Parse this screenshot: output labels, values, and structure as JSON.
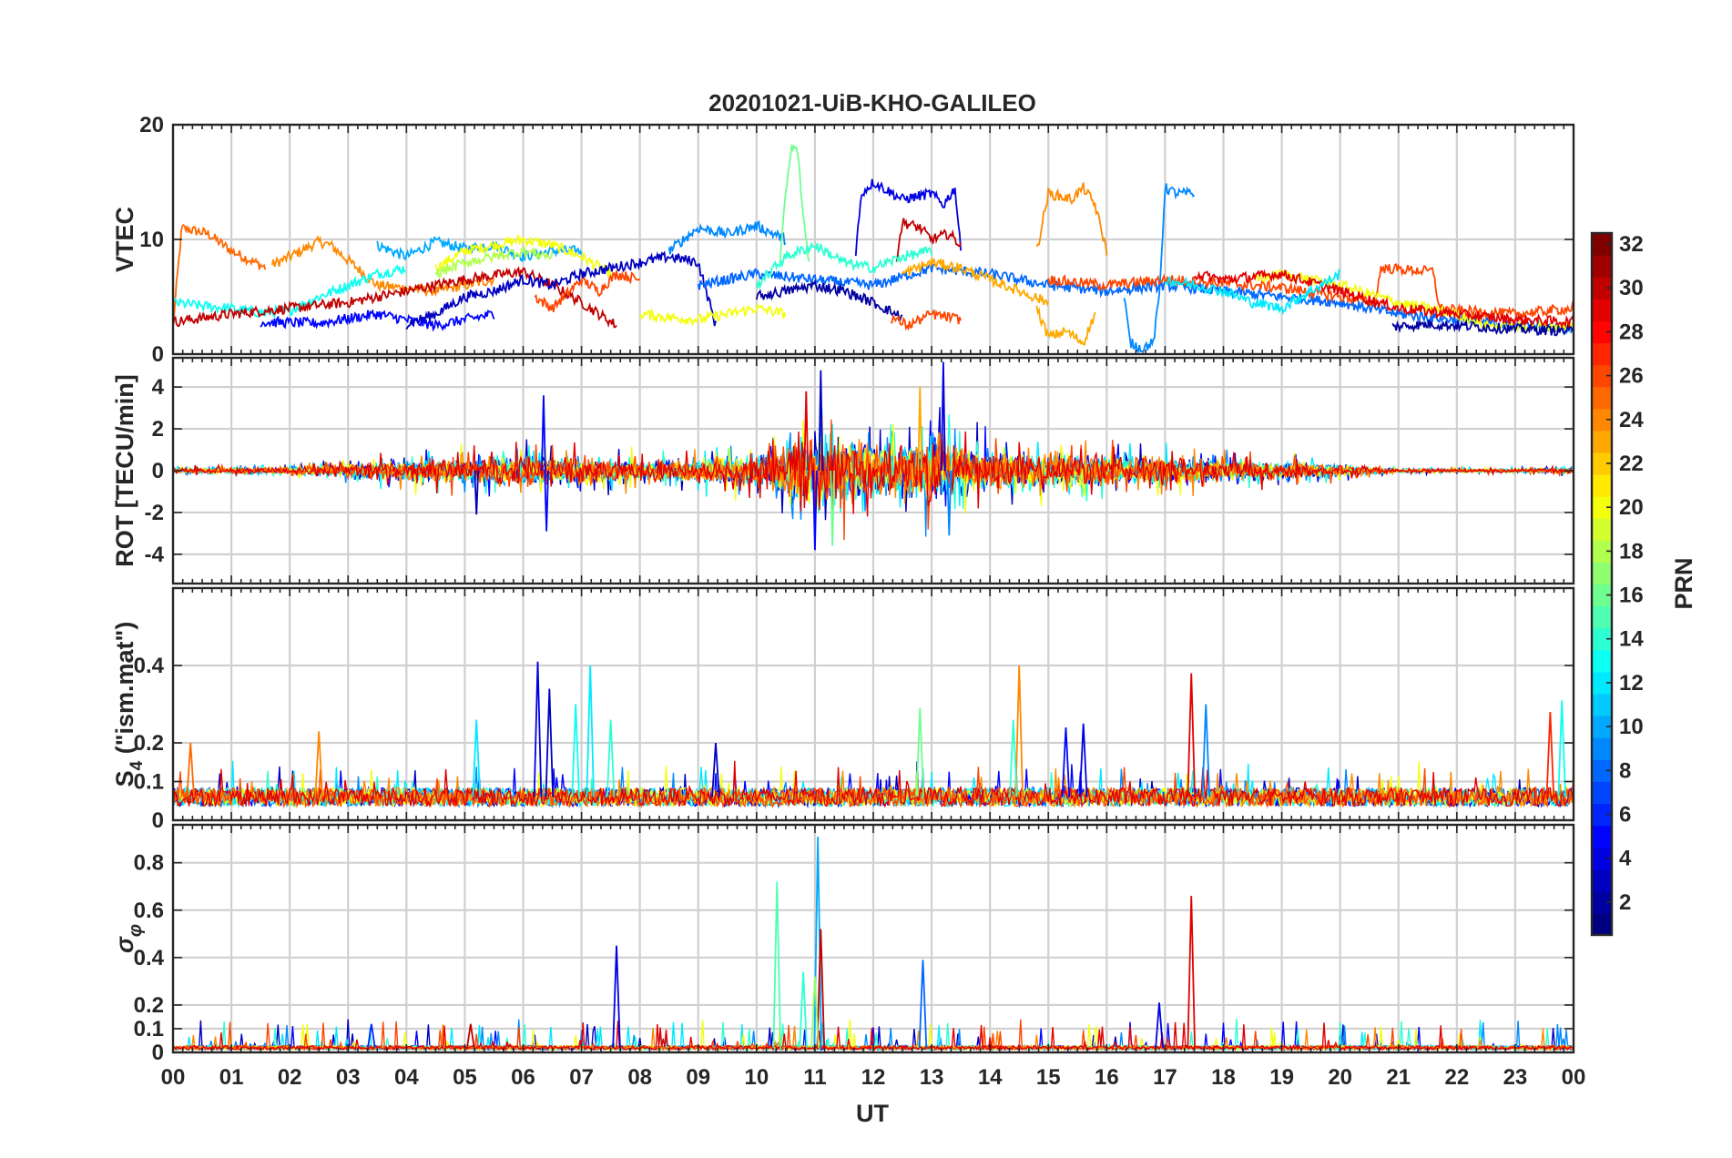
{
  "chart_data": {
    "type": "line",
    "title": "20201021-UiB-KHO-GALILEO",
    "xlabel": "UT",
    "x_tick_labels": [
      "00",
      "01",
      "02",
      "03",
      "04",
      "05",
      "06",
      "07",
      "08",
      "09",
      "10",
      "11",
      "12",
      "13",
      "14",
      "15",
      "16",
      "17",
      "18",
      "19",
      "20",
      "21",
      "22",
      "23",
      "00"
    ],
    "xlim_hours": [
      0,
      24
    ],
    "grid": true,
    "colorbar": {
      "label": "PRN",
      "range": [
        1,
        32
      ],
      "tick_labels": [
        "2",
        "4",
        "6",
        "8",
        "10",
        "12",
        "14",
        "16",
        "18",
        "20",
        "22",
        "24",
        "26",
        "28",
        "30",
        "32"
      ],
      "colormap": "jet"
    },
    "panels": [
      {
        "ylabel": "VTEC",
        "ylim": [
          0,
          20
        ],
        "y_ticks": [
          0,
          10,
          20
        ],
        "y_tick_labels": [
          "0",
          "10",
          "20"
        ],
        "series": [
          {
            "prn": 25,
            "x": [
              0,
              0.15,
              0.6,
              1.0,
              1.6
            ],
            "y": [
              2.5,
              11.0,
              10.5,
              9.0,
              7.5
            ]
          },
          {
            "prn": 24,
            "x": [
              1.7,
              2.0,
              2.5,
              2.7,
              3.5,
              4.5,
              5.5
            ],
            "y": [
              7.8,
              8.5,
              9.8,
              9.5,
              6.0,
              5.5,
              6.5
            ]
          },
          {
            "prn": 10,
            "x": [
              3.5,
              4.0,
              4.5,
              5.0,
              5.5,
              6.0,
              6.5,
              7.0
            ],
            "y": [
              9.5,
              8.5,
              9.8,
              9.2,
              9.5,
              8.5,
              9.0,
              9.0
            ]
          },
          {
            "prn": 20,
            "x": [
              4.5,
              5.0,
              5.5,
              6.0,
              6.5,
              7.0,
              7.5
            ],
            "y": [
              7.5,
              9.0,
              9.5,
              10.0,
              9.5,
              8.5,
              7.0
            ]
          },
          {
            "prn": 13,
            "x": [
              0,
              0.5,
              1.0,
              1.5,
              2.0,
              2.5,
              3.0,
              3.5,
              4.0
            ],
            "y": [
              4.5,
              4.2,
              4.0,
              3.6,
              3.8,
              5.0,
              6.0,
              7.0,
              7.5
            ]
          },
          {
            "prn": 30,
            "x": [
              0,
              1.0,
              2.0,
              3.0,
              4.0,
              5.0,
              6.0,
              6.5,
              7.0,
              7.6
            ],
            "y": [
              2.8,
              3.5,
              4.0,
              4.5,
              5.5,
              6.5,
              7.2,
              6.0,
              4.5,
              2.5
            ]
          },
          {
            "prn": 26,
            "x": [
              6.2,
              6.5,
              7.0,
              7.3,
              7.6,
              8.0
            ],
            "y": [
              5.0,
              4.0,
              6.5,
              5.5,
              7.0,
              6.5
            ]
          },
          {
            "prn": 5,
            "x": [
              1.5,
              2.5,
              3.5,
              4.0,
              4.5,
              5.0,
              5.5
            ],
            "y": [
              2.8,
              2.7,
              3.5,
              3.0,
              2.5,
              3.0,
              3.5
            ]
          },
          {
            "prn": 3,
            "x": [
              4.0,
              4.5,
              5.0,
              5.5,
              6.0,
              6.5,
              7.0,
              7.5,
              8.0,
              8.5,
              9.0,
              9.3
            ],
            "y": [
              2.6,
              3.5,
              5.0,
              5.5,
              6.5,
              6.0,
              7.0,
              7.5,
              8.0,
              8.5,
              8.0,
              2.5
            ]
          },
          {
            "prn": 20,
            "x": [
              8.0,
              8.5,
              9.0,
              9.5,
              10.0,
              10.5
            ],
            "y": [
              3.5,
              3.2,
              3.0,
              3.5,
              4.0,
              3.5
            ]
          },
          {
            "prn": 9,
            "x": [
              8.5,
              9.0,
              9.5,
              10.0,
              10.5
            ],
            "y": [
              9.0,
              11.0,
              10.5,
              11.2,
              10.0
            ]
          },
          {
            "prn": 16,
            "x": [
              10.4,
              10.5,
              10.6,
              10.7,
              10.8,
              10.9
            ],
            "y": [
              8.0,
              14.0,
              18.0,
              17.8,
              12.0,
              8.0
            ]
          },
          {
            "prn": 4,
            "x": [
              11.7,
              11.8,
              12.0,
              12.5,
              13.0,
              13.2,
              13.4,
              13.5
            ],
            "y": [
              9.0,
              14.0,
              15.0,
              13.5,
              14.0,
              13.0,
              14.5,
              9.0
            ]
          },
          {
            "prn": 30,
            "x": [
              12.4,
              12.5,
              12.8,
              13.0,
              13.3,
              13.5
            ],
            "y": [
              8.5,
              11.5,
              11.0,
              10.0,
              10.5,
              9.5
            ]
          },
          {
            "prn": 24,
            "x": [
              14.8,
              15.0,
              15.4,
              15.6,
              15.8,
              16.0
            ],
            "y": [
              9.0,
              14.0,
              13.5,
              14.5,
              13.0,
              9.0
            ]
          },
          {
            "prn": 23,
            "x": [
              14.8,
              15.0,
              15.3,
              15.6,
              15.8
            ],
            "y": [
              4.0,
              1.5,
              2.0,
              1.0,
              3.5
            ]
          },
          {
            "prn": 9,
            "x": [
              16.3,
              16.4,
              16.6,
              16.8,
              16.9,
              17.0,
              17.2,
              17.5
            ],
            "y": [
              5.0,
              1.0,
              0.5,
              1.0,
              5.0,
              14.5,
              14.0,
              14.0
            ]
          },
          {
            "prn": 8,
            "x": [
              9.0,
              10.0,
              11.0,
              12.0,
              13.0,
              14.0,
              15.0,
              16.0,
              17.0,
              18.0,
              19.0,
              20.0,
              21.0,
              22.0,
              23.0,
              24.0
            ],
            "y": [
              6.0,
              7.0,
              6.5,
              6.0,
              7.5,
              7.0,
              6.0,
              5.5,
              6.0,
              5.5,
              5.0,
              4.5,
              3.5,
              3.0,
              2.5,
              2.3
            ]
          },
          {
            "prn": 26,
            "x": [
              15.0,
              16.0,
              17.0,
              18.0,
              19.0,
              20.0,
              20.6,
              20.7,
              21.6,
              21.7,
              22.0,
              23.0,
              24.0
            ],
            "y": [
              6.5,
              6.0,
              6.5,
              6.2,
              5.8,
              5.0,
              4.5,
              7.5,
              7.2,
              4.0,
              3.8,
              3.5,
              4.0
            ]
          },
          {
            "prn": 20,
            "x": [
              18.5,
              19.0,
              20.0,
              21.0,
              22.0,
              22.5,
              23.0,
              24.0
            ],
            "y": [
              6.5,
              7.0,
              6.0,
              4.5,
              3.5,
              2.5,
              2.3,
              2.5
            ]
          },
          {
            "prn": 2,
            "x": [
              20.9,
              21.5,
              22.0,
              23.0,
              24.0
            ],
            "y": [
              2.4,
              2.6,
              2.5,
              2.2,
              2.0
            ]
          },
          {
            "prn": 29,
            "x": [
              17.5,
              18.0,
              19.0,
              20.0,
              21.0,
              22.0,
              23.0,
              24.0
            ],
            "y": [
              7.0,
              6.5,
              7.0,
              5.5,
              4.0,
              3.5,
              3.0,
              2.8
            ]
          },
          {
            "prn": 12,
            "x": [
              17.0,
              18.0,
              18.5,
              19.0,
              19.5,
              20.0
            ],
            "y": [
              6.5,
              5.5,
              4.5,
              4.0,
              5.5,
              7.0
            ]
          },
          {
            "prn": 14,
            "x": [
              10.0,
              10.5,
              11.0,
              11.5,
              12.0,
              12.5,
              13.0
            ],
            "y": [
              6.0,
              8.5,
              9.5,
              8.0,
              7.5,
              8.5,
              9.0
            ]
          },
          {
            "prn": 2,
            "x": [
              10.0,
              10.5,
              11.0,
              11.5,
              12.0,
              12.5
            ],
            "y": [
              5.0,
              5.5,
              6.0,
              5.5,
              4.5,
              3.2
            ]
          },
          {
            "prn": 23,
            "x": [
              12.5,
              13.0,
              13.5,
              14.0,
              14.5,
              15.0
            ],
            "y": [
              7.0,
              8.0,
              7.5,
              6.5,
              5.5,
              4.5
            ]
          },
          {
            "prn": 26,
            "x": [
              12.3,
              12.6,
              13.0,
              13.5
            ],
            "y": [
              3.2,
              2.5,
              3.5,
              3.0
            ]
          },
          {
            "prn": 18,
            "x": [
              4.5,
              5.0,
              5.5,
              6.0,
              6.5
            ],
            "y": [
              7.0,
              8.0,
              8.5,
              9.0,
              8.5
            ]
          }
        ]
      },
      {
        "ylabel": "ROT [TECU/min]",
        "ylim": [
          -5.4,
          5.4
        ],
        "y_ticks": [
          -4,
          -2,
          0,
          2,
          4
        ],
        "y_tick_labels": [
          "-4",
          "-2",
          "0",
          "2",
          "4"
        ],
        "activity_envelope": {
          "x": [
            0,
            1,
            2,
            3,
            4,
            5,
            6,
            7,
            8,
            9,
            10,
            10.5,
            11,
            11.5,
            12,
            12.5,
            13,
            13.5,
            14,
            15,
            16,
            17,
            18,
            19,
            20,
            21,
            22,
            23,
            24
          ],
          "amplitude": [
            0.3,
            0.3,
            0.4,
            0.8,
            1.2,
            1.5,
            1.8,
            1.4,
            1.2,
            1.4,
            1.6,
            3.0,
            4.5,
            3.8,
            3.2,
            3.5,
            4.0,
            3.0,
            2.2,
            2.0,
            1.8,
            1.5,
            1.2,
            1.0,
            0.6,
            0.2,
            0.2,
            0.2,
            0.3
          ]
        },
        "spikes": [
          {
            "x": 6.35,
            "y": 3.6,
            "prn": 5
          },
          {
            "x": 6.4,
            "y": -2.9,
            "prn": 5
          },
          {
            "x": 10.85,
            "y": 3.8,
            "prn": 29
          },
          {
            "x": 11.0,
            "y": -3.8,
            "prn": 5
          },
          {
            "x": 11.1,
            "y": 4.8,
            "prn": 3
          },
          {
            "x": 11.3,
            "y": -3.6,
            "prn": 16
          },
          {
            "x": 12.8,
            "y": 4.0,
            "prn": 23
          },
          {
            "x": 13.2,
            "y": 5.2,
            "prn": 4
          },
          {
            "x": 13.3,
            "y": -3.1,
            "prn": 9
          },
          {
            "x": 5.2,
            "y": -2.1,
            "prn": 3
          }
        ]
      },
      {
        "ylabel": "S4 (\"ism.mat\")",
        "ylim": [
          0,
          0.6
        ],
        "y_ticks": [
          0,
          0.1,
          0.2,
          0.4
        ],
        "y_tick_labels": [
          "0",
          "0.1",
          "0.2",
          "0.4"
        ],
        "baseline": 0.06,
        "spikes": [
          {
            "x": 6.25,
            "y": 0.41,
            "prn": 4
          },
          {
            "x": 6.45,
            "y": 0.34,
            "prn": 3
          },
          {
            "x": 7.15,
            "y": 0.4,
            "prn": 12
          },
          {
            "x": 6.9,
            "y": 0.3,
            "prn": 13
          },
          {
            "x": 7.5,
            "y": 0.26,
            "prn": 14
          },
          {
            "x": 5.2,
            "y": 0.26,
            "prn": 12
          },
          {
            "x": 14.5,
            "y": 0.4,
            "prn": 24
          },
          {
            "x": 14.4,
            "y": 0.26,
            "prn": 14
          },
          {
            "x": 17.45,
            "y": 0.38,
            "prn": 29
          },
          {
            "x": 17.7,
            "y": 0.3,
            "prn": 9
          },
          {
            "x": 12.8,
            "y": 0.29,
            "prn": 16
          },
          {
            "x": 23.8,
            "y": 0.31,
            "prn": 13
          },
          {
            "x": 23.6,
            "y": 0.28,
            "prn": 27
          },
          {
            "x": 2.5,
            "y": 0.23,
            "prn": 24
          },
          {
            "x": 15.6,
            "y": 0.25,
            "prn": 4
          },
          {
            "x": 15.3,
            "y": 0.24,
            "prn": 5
          },
          {
            "x": 9.3,
            "y": 0.2,
            "prn": 3
          },
          {
            "x": 0.3,
            "y": 0.2,
            "prn": 25
          }
        ]
      },
      {
        "ylabel": "σφ",
        "ylim": [
          0,
          0.96
        ],
        "y_ticks": [
          0,
          0.1,
          0.2,
          0.4,
          0.6,
          0.8
        ],
        "y_tick_labels": [
          "0",
          "0.1",
          "0.2",
          "0.4",
          "0.6",
          "0.8"
        ],
        "baseline": 0.02,
        "spikes": [
          {
            "x": 11.05,
            "y": 0.91,
            "prn": 10
          },
          {
            "x": 10.35,
            "y": 0.72,
            "prn": 15
          },
          {
            "x": 11.1,
            "y": 0.52,
            "prn": 30
          },
          {
            "x": 17.45,
            "y": 0.66,
            "prn": 29
          },
          {
            "x": 7.6,
            "y": 0.45,
            "prn": 4
          },
          {
            "x": 12.85,
            "y": 0.39,
            "prn": 8
          },
          {
            "x": 10.8,
            "y": 0.34,
            "prn": 14
          },
          {
            "x": 11.0,
            "y": 0.32,
            "prn": 17
          },
          {
            "x": 16.9,
            "y": 0.21,
            "prn": 4
          },
          {
            "x": 3.4,
            "y": 0.12,
            "prn": 6
          },
          {
            "x": 5.1,
            "y": 0.12,
            "prn": 30
          }
        ]
      }
    ]
  }
}
